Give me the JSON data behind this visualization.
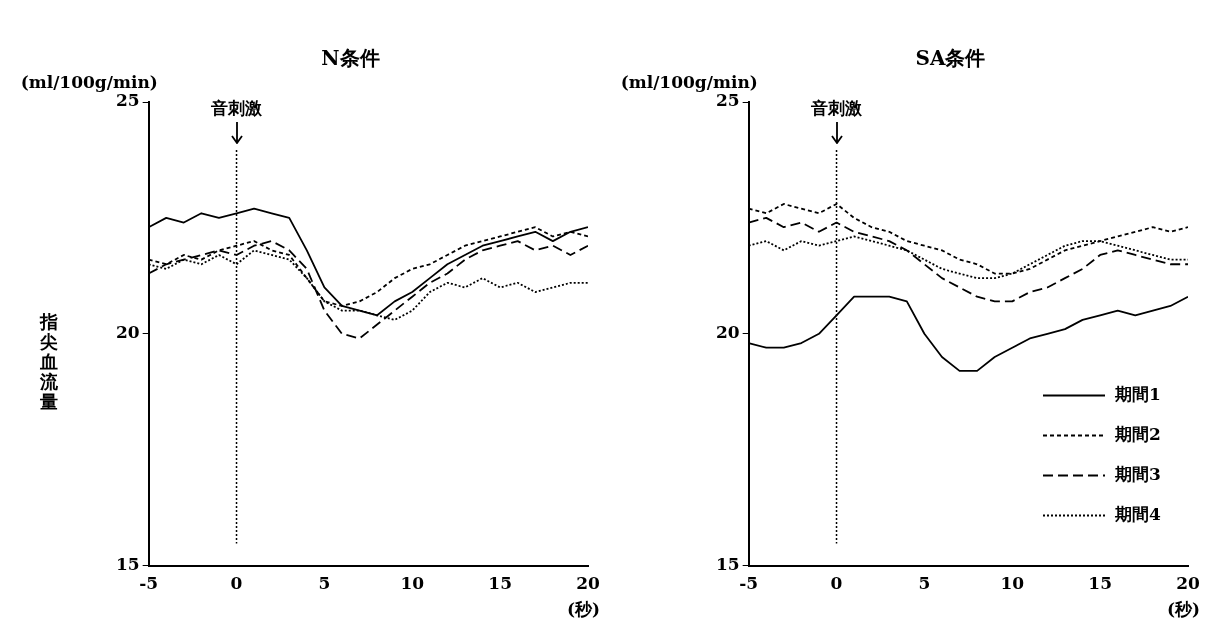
{
  "chart_data": [
    {
      "type": "line",
      "title": "N条件",
      "ylabel": "指尖血流量",
      "xlabel": "(秒)",
      "annotations": [
        "(ml/100g/min)"
      ],
      "x": [
        -5,
        -4,
        -3,
        -2,
        -1,
        0,
        1,
        2,
        3,
        4,
        5,
        6,
        7,
        8,
        9,
        10,
        11,
        12,
        13,
        14,
        15,
        16,
        17,
        18,
        19,
        20
      ],
      "xlim": [
        -5,
        20
      ],
      "xticks": [
        -5,
        0,
        5,
        10,
        15,
        20
      ],
      "ylim": [
        15,
        25
      ],
      "yticks": [
        15,
        20,
        25
      ],
      "grid": false,
      "legend": false,
      "marker": "none",
      "ref_lines": [
        {
          "axis": "x",
          "value": 0,
          "label": "音刺激",
          "line_style": "dotted",
          "color": "#000000"
        }
      ],
      "series": [
        {
          "color": "#000000",
          "line_style": "solid",
          "values": [
            22.3,
            22.5,
            22.4,
            22.6,
            22.5,
            22.6,
            22.7,
            22.6,
            22.5,
            21.8,
            21.0,
            20.6,
            20.5,
            20.4,
            20.7,
            20.9,
            21.2,
            21.5,
            21.7,
            21.9,
            22.0,
            22.1,
            22.2,
            22.0,
            22.2,
            22.3
          ]
        },
        {
          "color": "#000000",
          "line_style": "dashed",
          "values": [
            21.6,
            21.5,
            21.7,
            21.6,
            21.8,
            21.9,
            22.0,
            21.8,
            21.7,
            21.2,
            20.7,
            20.6,
            20.7,
            20.9,
            21.2,
            21.4,
            21.5,
            21.7,
            21.9,
            22.0,
            22.1,
            22.2,
            22.3,
            22.1,
            22.2,
            22.1
          ]
        },
        {
          "color": "#000000",
          "line_style": "dashed",
          "values": [
            21.3,
            21.5,
            21.6,
            21.7,
            21.8,
            21.7,
            21.9,
            22.0,
            21.8,
            21.4,
            20.5,
            20.0,
            19.9,
            20.2,
            20.5,
            20.8,
            21.1,
            21.3,
            21.6,
            21.8,
            21.9,
            22.0,
            21.8,
            21.9,
            21.7,
            21.9
          ]
        },
        {
          "color": "#000000",
          "line_style": "dotted",
          "values": [
            21.5,
            21.4,
            21.6,
            21.5,
            21.7,
            21.5,
            21.8,
            21.7,
            21.6,
            21.2,
            20.7,
            20.5,
            20.5,
            20.4,
            20.3,
            20.5,
            20.9,
            21.1,
            21.0,
            21.2,
            21.0,
            21.1,
            20.9,
            21.0,
            21.1,
            21.1
          ]
        }
      ]
    },
    {
      "type": "line",
      "title": "SA条件",
      "xlabel": "(秒)",
      "annotations": [
        "(ml/100g/min)"
      ],
      "x": [
        -5,
        -4,
        -3,
        -2,
        -1,
        0,
        1,
        2,
        3,
        4,
        5,
        6,
        7,
        8,
        9,
        10,
        11,
        12,
        13,
        14,
        15,
        16,
        17,
        18,
        19,
        20
      ],
      "xlim": [
        -5,
        20
      ],
      "xticks": [
        -5,
        0,
        5,
        10,
        15,
        20
      ],
      "ylim": [
        15,
        25
      ],
      "yticks": [
        15,
        20,
        25
      ],
      "grid": false,
      "legend": "bottom right",
      "marker": "none",
      "ref_lines": [
        {
          "axis": "x",
          "value": 0,
          "label": "音刺激",
          "line_style": "dotted",
          "color": "#000000"
        }
      ],
      "series": [
        {
          "name": "期間1",
          "color": "#000000",
          "line_style": "solid",
          "values": [
            19.8,
            19.7,
            19.7,
            19.8,
            20.0,
            20.4,
            20.8,
            20.8,
            20.8,
            20.7,
            20.0,
            19.5,
            19.2,
            19.2,
            19.5,
            19.7,
            19.9,
            20.0,
            20.1,
            20.3,
            20.4,
            20.5,
            20.4,
            20.5,
            20.6,
            20.8
          ]
        },
        {
          "name": "期間2",
          "color": "#000000",
          "line_style": "dashed",
          "values": [
            22.7,
            22.6,
            22.8,
            22.7,
            22.6,
            22.8,
            22.5,
            22.3,
            22.2,
            22.0,
            21.9,
            21.8,
            21.6,
            21.5,
            21.3,
            21.3,
            21.4,
            21.6,
            21.8,
            21.9,
            22.0,
            22.1,
            22.2,
            22.3,
            22.2,
            22.3
          ]
        },
        {
          "name": "期間3",
          "color": "#000000",
          "line_style": "dashed",
          "values": [
            22.4,
            22.5,
            22.3,
            22.4,
            22.2,
            22.4,
            22.2,
            22.1,
            22.0,
            21.8,
            21.5,
            21.2,
            21.0,
            20.8,
            20.7,
            20.7,
            20.9,
            21.0,
            21.2,
            21.4,
            21.7,
            21.8,
            21.7,
            21.6,
            21.5,
            21.5
          ]
        },
        {
          "name": "期間4",
          "color": "#000000",
          "line_style": "dotted",
          "values": [
            21.9,
            22.0,
            21.8,
            22.0,
            21.9,
            22.0,
            22.1,
            22.0,
            21.9,
            21.8,
            21.6,
            21.4,
            21.3,
            21.2,
            21.2,
            21.3,
            21.5,
            21.7,
            21.9,
            22.0,
            22.0,
            21.9,
            21.8,
            21.7,
            21.6,
            21.6
          ]
        }
      ]
    }
  ]
}
